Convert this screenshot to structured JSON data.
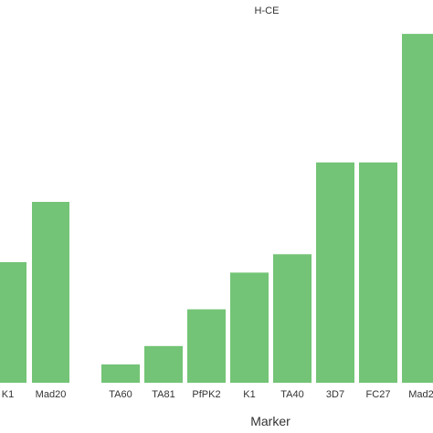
{
  "chart_data": [
    {
      "type": "bar",
      "title": "",
      "xlabel": "",
      "ylabel": "",
      "categories": [
        "K1",
        "Mad20"
      ],
      "values": [
        3.0,
        4.5
      ],
      "ylim": [
        0,
        7
      ],
      "grid": false,
      "bar_color": "#73c476"
    },
    {
      "type": "bar",
      "title": "H-CE",
      "xlabel": "Marker",
      "ylabel": "",
      "categories": [
        "TA60",
        "TA81",
        "PfPK2",
        "K1",
        "TA40",
        "3D7",
        "FC27",
        "Mad2"
      ],
      "values": [
        0.5,
        1.0,
        2.0,
        3.0,
        3.5,
        6.0,
        6.0,
        9.5
      ],
      "ylim": [
        0,
        10
      ],
      "grid": false,
      "bar_color": "#73c476"
    }
  ]
}
